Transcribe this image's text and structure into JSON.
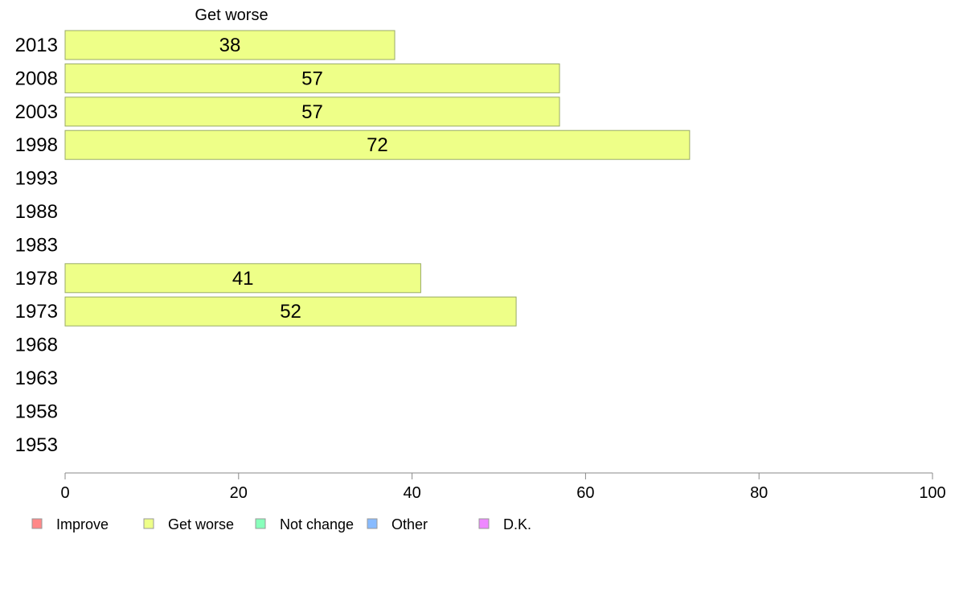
{
  "chart_data": {
    "type": "bar",
    "orientation": "horizontal",
    "series_title": "Get worse",
    "categories": [
      "2013",
      "2008",
      "2003",
      "1998",
      "1993",
      "1988",
      "1983",
      "1978",
      "1973",
      "1968",
      "1963",
      "1958",
      "1953"
    ],
    "values": [
      38,
      57,
      57,
      72,
      null,
      null,
      null,
      41,
      52,
      null,
      null,
      null,
      null
    ],
    "xlim": [
      0,
      100
    ],
    "xticks": [
      0,
      20,
      40,
      60,
      80,
      100
    ],
    "bar_color": "#eeff88",
    "bar_stroke": "#99aa66",
    "grid": false,
    "legend": {
      "placement": "bottom-left",
      "items": [
        {
          "label": "Improve",
          "color": "#ff8888"
        },
        {
          "label": "Get worse",
          "color": "#eeff88"
        },
        {
          "label": "Not change",
          "color": "#88ffbb"
        },
        {
          "label": "Other",
          "color": "#88bbff"
        },
        {
          "label": "D.K.",
          "color": "#ee88ff"
        }
      ]
    }
  }
}
